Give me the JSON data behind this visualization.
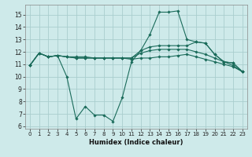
{
  "xlabel": "Humidex (Indice chaleur)",
  "background_color": "#ceeaea",
  "grid_color": "#aacece",
  "line_color": "#1a6b5a",
  "xlim": [
    -0.5,
    23.5
  ],
  "ylim": [
    5.8,
    15.8
  ],
  "xticks": [
    0,
    1,
    2,
    3,
    4,
    5,
    6,
    7,
    8,
    9,
    10,
    11,
    12,
    13,
    14,
    15,
    16,
    17,
    18,
    19,
    20,
    21,
    22,
    23
  ],
  "yticks": [
    6,
    7,
    8,
    9,
    10,
    11,
    12,
    13,
    14,
    15
  ],
  "line1_x": [
    0,
    1,
    2,
    3,
    4,
    5,
    6,
    7,
    8,
    9,
    10,
    11,
    12,
    13,
    14,
    15,
    16,
    17,
    18,
    19,
    20,
    21,
    22,
    23
  ],
  "line1_y": [
    10.9,
    11.9,
    11.6,
    11.7,
    10.0,
    6.6,
    7.6,
    6.9,
    6.9,
    6.4,
    8.3,
    11.2,
    12.1,
    13.4,
    15.2,
    15.2,
    15.3,
    13.0,
    12.8,
    12.7,
    11.8,
    11.2,
    11.1,
    10.4
  ],
  "line2_x": [
    0,
    1,
    2,
    3,
    4,
    5,
    6,
    7,
    8,
    9,
    10,
    11,
    12,
    13,
    14,
    15,
    16,
    17,
    18,
    19,
    20,
    21,
    22,
    23
  ],
  "line2_y": [
    10.9,
    11.9,
    11.6,
    11.7,
    11.6,
    11.5,
    11.5,
    11.5,
    11.5,
    11.5,
    11.5,
    11.5,
    12.1,
    12.4,
    12.5,
    12.5,
    12.5,
    12.5,
    12.8,
    12.7,
    11.8,
    11.2,
    11.1,
    10.4
  ],
  "line3_x": [
    0,
    1,
    2,
    3,
    4,
    5,
    6,
    7,
    8,
    9,
    10,
    11,
    12,
    13,
    14,
    15,
    16,
    17,
    18,
    19,
    20,
    21,
    22,
    23
  ],
  "line3_y": [
    10.9,
    11.9,
    11.6,
    11.7,
    11.6,
    11.5,
    11.5,
    11.5,
    11.5,
    11.5,
    11.5,
    11.5,
    11.9,
    12.1,
    12.2,
    12.2,
    12.2,
    12.2,
    12.0,
    11.8,
    11.5,
    11.2,
    10.9,
    10.4
  ],
  "line4_x": [
    0,
    1,
    2,
    3,
    4,
    5,
    6,
    7,
    8,
    9,
    10,
    11,
    12,
    13,
    14,
    15,
    16,
    17,
    18,
    19,
    20,
    21,
    22,
    23
  ],
  "line4_y": [
    10.9,
    11.9,
    11.6,
    11.7,
    11.6,
    11.6,
    11.6,
    11.5,
    11.5,
    11.5,
    11.5,
    11.4,
    11.5,
    11.5,
    11.6,
    11.6,
    11.7,
    11.8,
    11.6,
    11.4,
    11.2,
    11.0,
    10.8,
    10.4
  ]
}
